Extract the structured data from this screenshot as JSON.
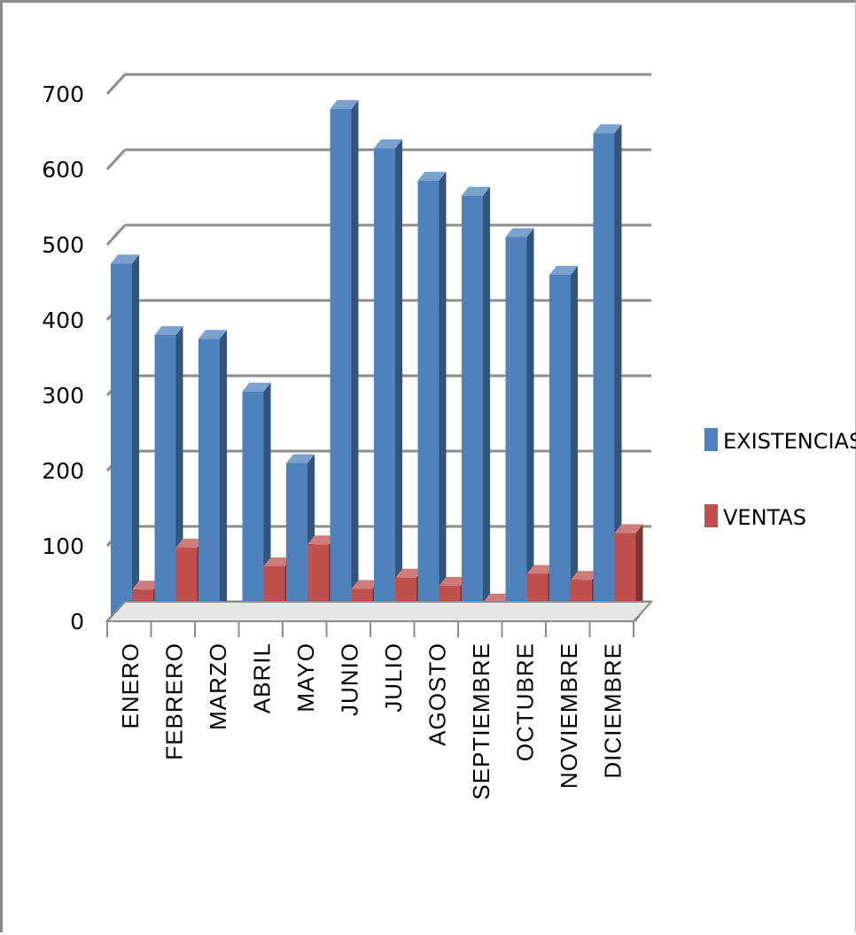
{
  "chart_data": {
    "type": "bar",
    "title": "",
    "xlabel": "",
    "ylabel": "",
    "categories": [
      "ENERO",
      "FEBRERO",
      "MARZO",
      "ABRIL",
      "MAYO",
      "JUNIO",
      "JULIO",
      "AGOSTO",
      "SEPTIEMBRE",
      "OCTUBRE",
      "NOVIEMBRE",
      "DICIEMBRE"
    ],
    "series": [
      {
        "name": "EXISTENCIAS",
        "color": "#4f81bd",
        "values": [
          475,
          380,
          375,
          305,
          210,
          680,
          628,
          585,
          565,
          510,
          460,
          648
        ]
      },
      {
        "name": "VENTAS",
        "color": "#c0504d",
        "values": [
          42,
          98,
          10,
          73,
          102,
          43,
          58,
          47,
          25,
          63,
          55,
          117
        ]
      }
    ],
    "ylim": [
      0,
      700
    ],
    "yticks": [
      "0",
      "100",
      "200",
      "300",
      "400",
      "500",
      "600",
      "700"
    ],
    "grid": true,
    "legend_position": "right",
    "style": "3d-clustered-column"
  }
}
